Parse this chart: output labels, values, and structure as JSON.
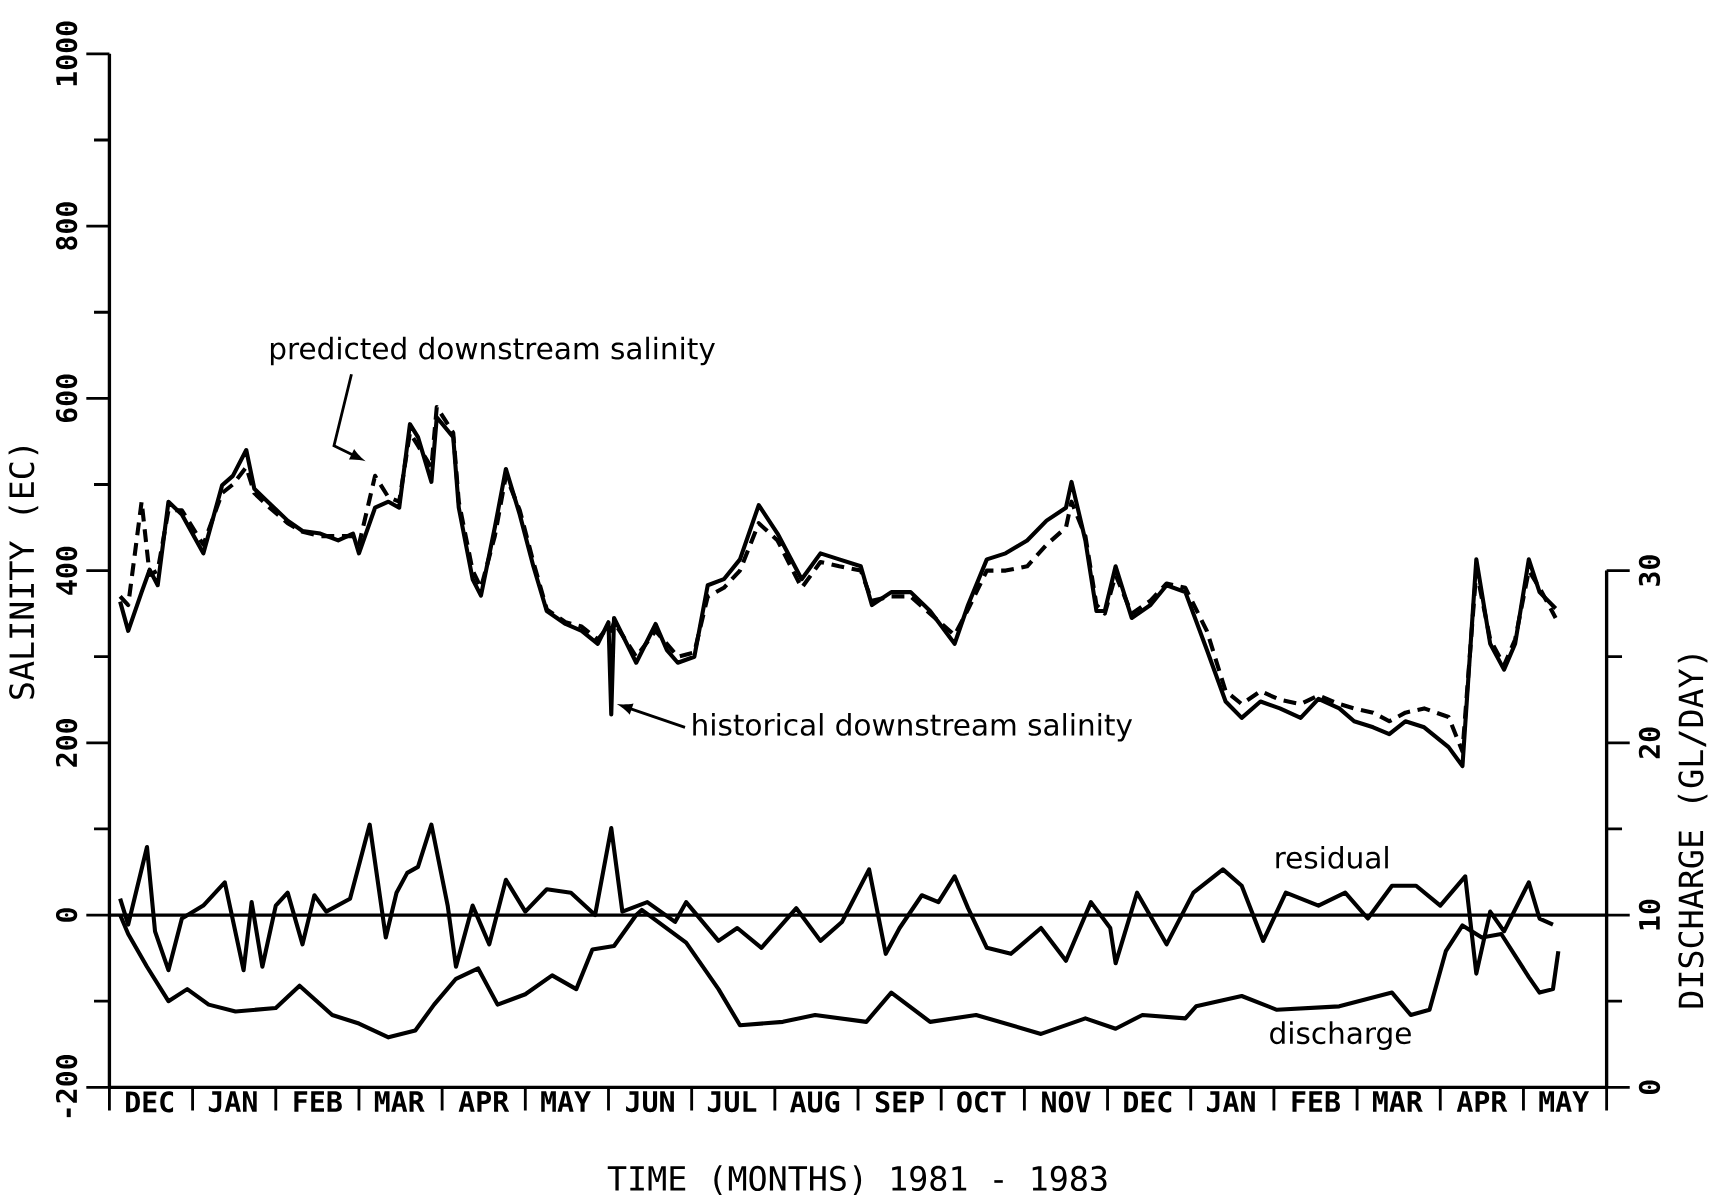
{
  "chart_data": {
    "type": "line",
    "xlabel": "TIME (MONTHS) 1981 - 1983",
    "ylabel": "SALINITY (EC)",
    "y2label": "DISCHARGE (GL/DAY)",
    "xlim": [
      "1981-12-01",
      "1983-06-01"
    ],
    "ylim": [
      -200,
      1000
    ],
    "y2lim": [
      0,
      30
    ],
    "xticks": [
      {
        "value": "1981-12-01",
        "label": null
      },
      {
        "value": "1981-12-16",
        "label": "DEC"
      },
      {
        "value": "1982-01-01",
        "label": null
      },
      {
        "value": "1982-01-16",
        "label": "JAN"
      },
      {
        "value": "1982-02-01",
        "label": null
      },
      {
        "value": "1982-02-15",
        "label": "FEB"
      },
      {
        "value": "1982-03-01",
        "label": null
      },
      {
        "value": "1982-03-16",
        "label": "MAR"
      },
      {
        "value": "1982-04-01",
        "label": null
      },
      {
        "value": "1982-04-16",
        "label": "APR"
      },
      {
        "value": "1982-05-01",
        "label": null
      },
      {
        "value": "1982-05-16",
        "label": "MAY"
      },
      {
        "value": "1982-06-01",
        "label": null
      },
      {
        "value": "1982-06-16",
        "label": "JUN"
      },
      {
        "value": "1982-07-01",
        "label": null
      },
      {
        "value": "1982-07-16",
        "label": "JUL"
      },
      {
        "value": "1982-08-01",
        "label": null
      },
      {
        "value": "1982-08-16",
        "label": "AUG"
      },
      {
        "value": "1982-09-01",
        "label": null
      },
      {
        "value": "1982-09-16",
        "label": "SEP"
      },
      {
        "value": "1982-10-01",
        "label": null
      },
      {
        "value": "1982-10-16",
        "label": "OCT"
      },
      {
        "value": "1982-11-01",
        "label": null
      },
      {
        "value": "1982-11-16",
        "label": "NOV"
      },
      {
        "value": "1982-12-01",
        "label": null
      },
      {
        "value": "1982-12-16",
        "label": "DEC"
      },
      {
        "value": "1983-01-01",
        "label": null
      },
      {
        "value": "1983-01-16",
        "label": "JAN"
      },
      {
        "value": "1983-02-01",
        "label": null
      },
      {
        "value": "1983-02-15",
        "label": "FEB"
      },
      {
        "value": "1983-03-01",
        "label": null
      },
      {
        "value": "1983-03-16",
        "label": "MAR"
      },
      {
        "value": "1983-04-01",
        "label": null
      },
      {
        "value": "1983-04-16",
        "label": "APR"
      },
      {
        "value": "1983-05-01",
        "label": null
      },
      {
        "value": "1983-05-16",
        "label": "MAY"
      },
      {
        "value": "1983-06-01",
        "label": null
      }
    ],
    "yticks": [
      -200,
      0,
      200,
      400,
      600,
      800,
      1000
    ],
    "y2ticks": [
      0,
      10,
      20,
      30
    ],
    "ref_lines": [
      {
        "axis": "y",
        "value": 0
      }
    ],
    "x": [
      "1981-12-05",
      "1981-12-08",
      "1981-12-13",
      "1981-12-16",
      "1981-12-19",
      "1981-12-23",
      "1981-12-28",
      "1982-01-05",
      "1982-01-12",
      "1982-01-16",
      "1982-01-21",
      "1982-01-24",
      "1982-01-29",
      "1982-02-05",
      "1982-02-10",
      "1982-02-16",
      "1982-02-22",
      "1982-02-27",
      "1982-03-01",
      "1982-03-07",
      "1982-03-12",
      "1982-03-16",
      "1982-03-20",
      "1982-03-23",
      "1982-03-28",
      "1982-03-30",
      "1982-04-05",
      "1982-04-07",
      "1982-04-12",
      "1982-04-15",
      "1982-04-20",
      "1982-04-24",
      "1982-04-29",
      "1982-05-04",
      "1982-05-09",
      "1982-05-16",
      "1982-05-22",
      "1982-05-28",
      "1982-06-01",
      "1982-06-02",
      "1982-06-03",
      "1982-06-11",
      "1982-06-18",
      "1982-06-22",
      "1982-06-26",
      "1982-07-02",
      "1982-07-07",
      "1982-07-13",
      "1982-07-19",
      "1982-07-26",
      "1982-08-02",
      "1982-08-11",
      "1982-08-18",
      "1982-08-25",
      "1982-09-02",
      "1982-09-06",
      "1982-09-13",
      "1982-09-20",
      "1982-09-27",
      "1982-10-06",
      "1982-10-11",
      "1982-10-18",
      "1982-10-25",
      "1982-11-02",
      "1982-11-09",
      "1982-11-16",
      "1982-11-18",
      "1982-11-23",
      "1982-11-27",
      "1982-11-30",
      "1982-12-04",
      "1982-12-10",
      "1982-12-17",
      "1982-12-23",
      "1982-12-30",
      "1983-01-07",
      "1983-01-14",
      "1983-01-20",
      "1983-01-27",
      "1983-02-03",
      "1983-02-10",
      "1983-02-16",
      "1983-02-23",
      "1983-02-28",
      "1983-03-07",
      "1983-03-13",
      "1983-03-19",
      "1983-03-26",
      "1983-04-04",
      "1983-04-09",
      "1983-04-14",
      "1983-04-19",
      "1983-04-24",
      "1983-04-28",
      "1983-05-03",
      "1983-05-07",
      "1983-05-13"
    ],
    "series": [
      {
        "name": "historical downstream salinity",
        "color": "#000000",
        "line_style": "solid",
        "values": [
          364,
          330,
          375,
          401,
          383,
          480,
          465,
          420,
          499,
          510,
          540,
          495,
          480,
          458,
          446,
          443,
          435,
          443,
          420,
          473,
          480,
          473,
          570,
          555,
          503,
          578,
          555,
          473,
          390,
          371,
          450,
          518,
          465,
          405,
          353,
          338,
          330,
          315,
          340,
          233,
          345,
          293,
          338,
          308,
          293,
          300,
          383,
          390,
          413,
          476,
          443,
          390,
          420,
          413,
          405,
          360,
          375,
          375,
          353,
          315,
          360,
          413,
          420,
          435,
          458,
          473,
          503,
          435,
          353,
          353,
          405,
          345,
          360,
          383,
          375,
          308,
          248,
          229,
          248,
          240,
          229,
          251,
          240,
          225,
          218,
          210,
          225,
          218,
          195,
          173,
          413,
          315,
          285,
          315,
          413,
          375,
          356
        ]
      },
      {
        "name": "predicted downstream salinity",
        "color": "#000000",
        "line_style": "dashed",
        "values": [
          370,
          360,
          480,
          395,
          400,
          470,
          470,
          430,
          490,
          500,
          520,
          490,
          475,
          455,
          445,
          440,
          440,
          440,
          430,
          510,
          485,
          480,
          560,
          545,
          520,
          590,
          560,
          480,
          400,
          380,
          440,
          510,
          470,
          410,
          355,
          340,
          335,
          320,
          335,
          330,
          340,
          300,
          330,
          315,
          300,
          305,
          370,
          380,
          400,
          455,
          435,
          380,
          410,
          405,
          400,
          365,
          370,
          370,
          350,
          325,
          355,
          400,
          400,
          405,
          430,
          450,
          480,
          440,
          360,
          350,
          395,
          350,
          365,
          385,
          380,
          330,
          260,
          245,
          260,
          250,
          245,
          255,
          245,
          240,
          235,
          225,
          235,
          240,
          230,
          190,
          400,
          320,
          290,
          320,
          400,
          380,
          345
        ]
      },
      {
        "name": "residual",
        "color": "#000000",
        "line_style": "solid",
        "x": [
          "1981-12-05",
          "1981-12-08",
          "1981-12-15",
          "1981-12-18",
          "1981-12-23",
          "1981-12-28",
          "1982-01-05",
          "1982-01-13",
          "1982-01-20",
          "1982-01-23",
          "1982-01-27",
          "1982-02-01",
          "1982-02-05",
          "1982-02-10",
          "1982-02-14",
          "1982-02-18",
          "1982-02-26",
          "1982-03-05",
          "1982-03-11",
          "1982-03-15",
          "1982-03-19",
          "1982-03-23",
          "1982-03-28",
          "1982-04-03",
          "1982-04-06",
          "1982-04-12",
          "1982-04-18",
          "1982-04-24",
          "1982-05-01",
          "1982-05-09",
          "1982-05-18",
          "1982-05-27",
          "1982-06-02",
          "1982-06-06",
          "1982-06-15",
          "1982-06-25",
          "1982-06-29",
          "1982-07-11",
          "1982-07-18",
          "1982-07-27",
          "1982-08-09",
          "1982-08-18",
          "1982-08-26",
          "1982-09-05",
          "1982-09-11",
          "1982-09-16",
          "1982-09-24",
          "1982-09-30",
          "1982-10-06",
          "1982-10-11",
          "1982-10-18",
          "1982-10-27",
          "1982-11-07",
          "1982-11-16",
          "1982-11-25",
          "1982-12-02",
          "1982-12-04",
          "1982-12-12",
          "1982-12-23",
          "1983-01-02",
          "1983-01-13",
          "1983-01-20",
          "1983-01-28",
          "1983-02-05",
          "1983-02-16",
          "1983-02-25",
          "1983-03-05",
          "1983-03-14",
          "1983-03-23",
          "1983-04-01",
          "1983-04-10",
          "1983-04-14",
          "1983-04-19",
          "1983-04-24",
          "1983-05-03",
          "1983-05-07",
          "1983-05-12"
        ],
        "values": [
          19,
          -11,
          79,
          -19,
          -64,
          -4,
          11,
          38,
          -64,
          15,
          -60,
          11,
          26,
          -34,
          23,
          4,
          19,
          105,
          -26,
          26,
          49,
          56,
          105,
          11,
          -60,
          11,
          -34,
          41,
          4,
          30,
          26,
          0,
          101,
          4,
          15,
          -8,
          15,
          -30,
          -15,
          -38,
          8,
          -30,
          -8,
          53,
          -45,
          -15,
          23,
          15,
          45,
          8,
          -38,
          -45,
          -15,
          -53,
          15,
          -15,
          -56,
          26,
          -34,
          26,
          53,
          34,
          -30,
          26,
          11,
          26,
          -4,
          34,
          34,
          11,
          45,
          -68,
          4,
          -19,
          38,
          -4,
          -11
        ]
      },
      {
        "name": "discharge",
        "color": "#000000",
        "line_style": "solid",
        "axis": "y2",
        "x": [
          "1981-12-05",
          "1981-12-08",
          "1981-12-15",
          "1981-12-23",
          "1981-12-30",
          "1982-01-07",
          "1982-01-17",
          "1982-02-01",
          "1982-02-09",
          "1982-02-20",
          "1982-03-01",
          "1982-03-12",
          "1982-03-22",
          "1982-03-29",
          "1982-04-06",
          "1982-04-14",
          "1982-04-21",
          "1982-05-01",
          "1982-05-11",
          "1982-05-20",
          "1982-05-26",
          "1982-06-03",
          "1982-06-11",
          "1982-06-13",
          "1982-06-29",
          "1982-07-11",
          "1982-07-19",
          "1982-08-04",
          "1982-08-16",
          "1982-09-04",
          "1982-09-13",
          "1982-09-27",
          "1982-10-14",
          "1982-11-07",
          "1982-11-23",
          "1982-12-04",
          "1982-12-14",
          "1982-12-30",
          "1983-01-03",
          "1983-01-20",
          "1983-02-02",
          "1983-02-23",
          "1983-03-14",
          "1983-03-21",
          "1983-03-28",
          "1983-04-03",
          "1983-04-09",
          "1983-04-16",
          "1983-04-23",
          "1983-05-03",
          "1983-05-07",
          "1983-05-12",
          "1983-05-14"
        ],
        "values": [
          10.0,
          8.9,
          7.0,
          5.0,
          5.7,
          4.8,
          4.4,
          4.6,
          5.9,
          4.2,
          3.7,
          2.9,
          3.3,
          4.8,
          6.3,
          6.9,
          4.8,
          5.4,
          6.5,
          5.7,
          8.0,
          8.2,
          10.0,
          10.3,
          8.4,
          5.7,
          3.6,
          3.8,
          4.2,
          3.8,
          5.5,
          3.8,
          4.2,
          3.1,
          4.0,
          3.4,
          4.2,
          4.0,
          4.7,
          5.3,
          4.5,
          4.7,
          5.5,
          4.2,
          4.5,
          7.9,
          9.4,
          8.7,
          8.9,
          6.4,
          5.5,
          5.7,
          7.9
        ]
      }
    ]
  }
}
